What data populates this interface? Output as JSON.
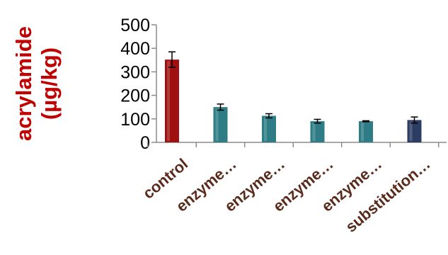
{
  "chart_data": {
    "type": "bar",
    "title": "",
    "xlabel": "",
    "ylabel_line1": "acrylamide",
    "ylabel_line2": "(µg/kg)",
    "ylim": [
      0,
      500
    ],
    "yticks": [
      0,
      100,
      200,
      300,
      400,
      500
    ],
    "categories": [
      "control",
      "enzyme…",
      "enzyme…",
      "enzyme…",
      "enzyme…",
      "substitution…"
    ],
    "values": [
      352,
      150,
      113,
      90,
      90,
      95
    ],
    "errors": [
      33,
      13,
      9,
      8,
      2,
      13
    ],
    "bar_colors": [
      "#a01010",
      "#2e7d86",
      "#2e7d86",
      "#2e7d86",
      "#2e7d86",
      "#2c3d63"
    ],
    "grid": false,
    "legend": "none"
  }
}
